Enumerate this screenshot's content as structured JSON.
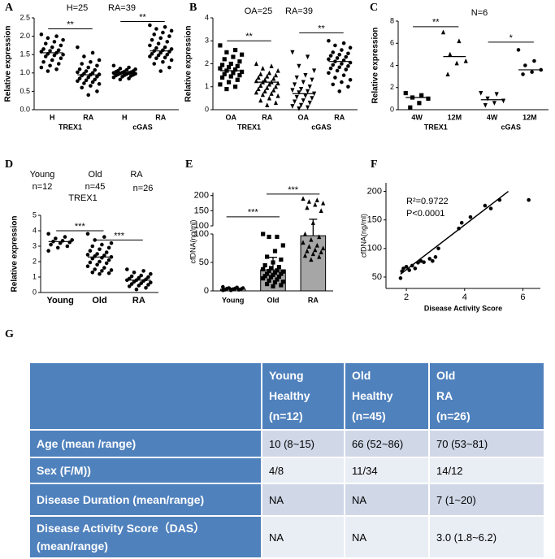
{
  "chart_data": [
    {
      "type": "dot",
      "panel": "A",
      "annotations": [
        "H=25",
        "RA=39"
      ],
      "ylabel": "Relative expression",
      "ylim": [
        0,
        2.5
      ],
      "yticks": [
        {
          "value": 0,
          "label": "0.0"
        },
        0.5,
        {
          "value": 1,
          "label": "1.0"
        },
        1.5,
        {
          "value": 2,
          "label": "2.0"
        },
        2.5
      ],
      "genes": [
        "TREX1",
        "cGAS"
      ],
      "groups": [
        {
          "name": "H",
          "marker": "circle",
          "median": 1.55,
          "values": [
            2.05,
            2.0,
            1.95,
            1.9,
            1.85,
            1.8,
            1.75,
            1.7,
            1.65,
            1.62,
            1.6,
            1.58,
            1.55,
            1.52,
            1.5,
            1.48,
            1.45,
            1.4,
            1.35,
            1.3,
            1.25,
            1.2,
            1.15,
            1.1,
            1.05
          ]
        },
        {
          "name": "RA",
          "marker": "circle",
          "median": 0.95,
          "values": [
            1.7,
            1.55,
            1.45,
            1.35,
            1.3,
            1.25,
            1.2,
            1.15,
            1.1,
            1.08,
            1.05,
            1.02,
            1.0,
            0.98,
            0.96,
            0.95,
            0.93,
            0.9,
            0.88,
            0.85,
            0.82,
            0.8,
            0.78,
            0.75,
            0.72,
            0.7,
            0.65,
            0.6,
            0.5,
            0.4
          ]
        },
        {
          "name": "H",
          "marker": "circle",
          "median": 1.0,
          "values": [
            1.2,
            1.15,
            1.12,
            1.1,
            1.08,
            1.06,
            1.05,
            1.04,
            1.03,
            1.02,
            1.01,
            1.0,
            1.0,
            0.99,
            0.98,
            0.97,
            0.96,
            0.95,
            0.94,
            0.93,
            0.92,
            0.9,
            0.88,
            0.85,
            0.82
          ]
        },
        {
          "name": "RA",
          "marker": "circle",
          "median": 1.6,
          "values": [
            2.3,
            2.25,
            2.2,
            2.15,
            2.1,
            2.05,
            2.0,
            1.95,
            1.9,
            1.85,
            1.8,
            1.75,
            1.7,
            1.68,
            1.65,
            1.62,
            1.6,
            1.58,
            1.55,
            1.52,
            1.5,
            1.48,
            1.45,
            1.42,
            1.4,
            1.35,
            1.3,
            1.25,
            1.15,
            1.05
          ]
        }
      ],
      "significance": [
        {
          "label": "**",
          "y": 2.2
        },
        {
          "label": "**",
          "y": 2.4
        }
      ]
    },
    {
      "type": "dot",
      "panel": "B",
      "annotations": [
        "OA=25",
        "RA=39"
      ],
      "ylabel": "Relative expression",
      "ylim": [
        0,
        4
      ],
      "yticks": [
        0,
        1,
        2,
        3,
        4
      ],
      "genes": [
        "TREX1",
        "cGAS"
      ],
      "groups": [
        {
          "name": "OA",
          "marker": "square",
          "median": 1.7,
          "values": [
            2.8,
            2.6,
            2.5,
            2.4,
            2.3,
            2.2,
            2.1,
            2.0,
            1.95,
            1.9,
            1.85,
            1.8,
            1.75,
            1.7,
            1.65,
            1.6,
            1.55,
            1.5,
            1.45,
            1.4,
            1.3,
            1.2,
            1.1,
            1.0,
            0.9
          ]
        },
        {
          "name": "RA",
          "marker": "triangle",
          "median": 1.2,
          "values": [
            2.0,
            1.9,
            1.8,
            1.7,
            1.6,
            1.55,
            1.5,
            1.45,
            1.4,
            1.35,
            1.3,
            1.25,
            1.2,
            1.2,
            1.15,
            1.1,
            1.05,
            1.0,
            0.95,
            0.9,
            0.85,
            0.8,
            0.75,
            0.7,
            0.65,
            0.6,
            0.5,
            0.4,
            0.3,
            0.2
          ]
        },
        {
          "name": "OA",
          "marker": "down-triangle",
          "median": 0.7,
          "values": [
            2.5,
            2.3,
            1.9,
            1.7,
            1.5,
            1.4,
            1.3,
            1.2,
            1.1,
            1.0,
            0.9,
            0.85,
            0.8,
            0.75,
            0.7,
            0.6,
            0.55,
            0.5,
            0.4,
            0.35,
            0.3,
            0.2,
            0.15,
            0.1,
            0.05
          ]
        },
        {
          "name": "RA",
          "marker": "circle",
          "median": 2.1,
          "values": [
            3.0,
            2.9,
            2.8,
            2.7,
            2.6,
            2.5,
            2.45,
            2.4,
            2.35,
            2.3,
            2.25,
            2.2,
            2.15,
            2.1,
            2.05,
            2.0,
            1.95,
            1.9,
            1.85,
            1.8,
            1.75,
            1.7,
            1.6,
            1.5,
            1.4,
            1.3,
            1.2,
            1.1,
            1.0,
            0.8
          ]
        }
      ],
      "significance": [
        {
          "label": "**",
          "y": 3.0
        },
        {
          "label": "**",
          "y": 3.35
        }
      ]
    },
    {
      "type": "dot",
      "panel": "C",
      "annotations": [
        "N=6"
      ],
      "ylabel": "Relative expression",
      "ylim": [
        0,
        8
      ],
      "yticks": [
        0,
        2,
        4,
        6,
        8
      ],
      "genes": [
        "TREX1",
        "cGAS"
      ],
      "groups": [
        {
          "name": "4W",
          "marker": "square",
          "median": 1.1,
          "values": [
            1.5,
            1.3,
            1.1,
            1.0,
            0.6,
            0.2
          ]
        },
        {
          "name": "12M",
          "marker": "triangle",
          "median": 4.8,
          "values": [
            7.0,
            6.2,
            5.0,
            4.4,
            4.2,
            3.2
          ]
        },
        {
          "name": "4W",
          "marker": "down-triangle",
          "median": 0.9,
          "values": [
            1.5,
            1.4,
            1.0,
            0.8,
            0.6,
            0.4
          ]
        },
        {
          "name": "12M",
          "marker": "circle",
          "median": 3.6,
          "values": [
            5.4,
            4.4,
            4.0,
            3.6,
            3.4,
            3.2
          ]
        }
      ],
      "significance": [
        {
          "label": "**",
          "y": 7.5
        },
        {
          "label": "*",
          "y": 6.1
        }
      ]
    },
    {
      "type": "dot",
      "panel": "D",
      "annotations": [
        "Young",
        "Old",
        "RA",
        "n=12",
        "n=45",
        "n=26",
        "TREX1"
      ],
      "ylabel": "Relative expression",
      "ylim": [
        0,
        5
      ],
      "yticks": [
        0,
        1,
        2,
        3,
        4,
        5
      ],
      "groups": [
        {
          "name": "Young",
          "marker": "circle",
          "median": 3.3,
          "values": [
            3.8,
            3.6,
            3.5,
            3.4,
            3.35,
            3.3,
            3.25,
            3.2,
            3.1,
            3.0,
            2.9,
            2.7
          ]
        },
        {
          "name": "Old",
          "marker": "circle",
          "median": 2.3,
          "values": [
            3.8,
            3.6,
            3.4,
            3.2,
            3.1,
            3.0,
            2.9,
            2.8,
            2.7,
            2.6,
            2.5,
            2.45,
            2.4,
            2.35,
            2.3,
            2.25,
            2.2,
            2.1,
            2.0,
            1.95,
            1.9,
            1.8,
            1.7,
            1.6,
            1.5,
            1.45,
            1.4,
            1.3,
            1.25,
            1.2
          ]
        },
        {
          "name": "RA",
          "marker": "circle",
          "median": 0.8,
          "values": [
            1.5,
            1.4,
            1.3,
            1.2,
            1.1,
            1.05,
            1.0,
            0.95,
            0.9,
            0.85,
            0.8,
            0.8,
            0.75,
            0.7,
            0.65,
            0.6,
            0.55,
            0.5,
            0.45,
            0.4,
            0.3,
            0.2
          ]
        }
      ],
      "significance": [
        {
          "label": "***",
          "y": 4.0
        },
        {
          "label": "***",
          "y": 3.4
        }
      ]
    },
    {
      "type": "bar",
      "panel": "E",
      "ylabel": "cfDNA(ng/ml)",
      "ylim_lower": [
        0,
        100
      ],
      "yticks_lower": [
        0,
        50,
        100
      ],
      "ylim_upper": [
        100,
        210
      ],
      "yticks_upper": [
        100,
        150,
        200
      ],
      "groups": [
        {
          "name": "Young",
          "marker": "circle",
          "color": "#d9d9d9",
          "mean": 3,
          "sd": 1.5,
          "values": [
            7,
            6,
            5,
            5,
            4,
            4,
            3,
            3,
            2,
            2,
            1,
            1
          ]
        },
        {
          "name": "Old",
          "marker": "square",
          "color": "#a6a6a6",
          "mean": 37,
          "sd": 22,
          "values": [
            100,
            95,
            95,
            80,
            70,
            60,
            55,
            50,
            45,
            42,
            40,
            38,
            36,
            35,
            34,
            32,
            30,
            30,
            28,
            26,
            25,
            24,
            22,
            20,
            18,
            16,
            15,
            12,
            10,
            8
          ]
        },
        {
          "name": "RA",
          "marker": "triangle",
          "color": "#a6a6a6",
          "mean": 97,
          "sd": 25,
          "values": [
            190,
            185,
            180,
            175,
            170,
            160,
            150,
            110,
            100,
            95,
            90,
            85,
            80,
            78,
            75,
            72,
            70,
            68,
            65,
            62,
            60,
            55
          ]
        }
      ],
      "significance": [
        {
          "label": "***",
          "y": 130
        },
        {
          "label": "***",
          "y": 205
        }
      ]
    },
    {
      "type": "scatter",
      "panel": "F",
      "xlabel": "Disease Activity Score",
      "ylabel": "cfDNA(ng/ml)",
      "annotations": [
        "R²=0.9722",
        "P<0.0001"
      ],
      "xlim": [
        1.3,
        6.6
      ],
      "xticks": [
        2,
        4,
        6
      ],
      "ylim": [
        30,
        215
      ],
      "yticks": [
        50,
        100,
        150,
        200
      ],
      "x": [
        1.8,
        1.85,
        1.9,
        2.0,
        2.1,
        2.2,
        2.3,
        2.4,
        2.5,
        2.6,
        2.8,
        2.9,
        3.0,
        3.1,
        3.8,
        3.9,
        4.2,
        4.7,
        4.9,
        5.2,
        6.2
      ],
      "y": [
        48,
        60,
        65,
        68,
        62,
        70,
        65,
        75,
        78,
        76,
        82,
        78,
        85,
        100,
        135,
        145,
        155,
        175,
        170,
        185,
        185
      ],
      "fit": {
        "x": [
          1.8,
          5.5
        ],
        "y": [
          55,
          200
        ]
      }
    }
  ],
  "table": {
    "panel": "G",
    "header": [
      [
        "Young",
        "Healthy",
        "(n=12)"
      ],
      [
        "Old",
        "Healthy",
        "(n=45)"
      ],
      [
        "Old",
        "RA",
        "(n=26)"
      ]
    ],
    "rows": [
      [
        "Age (mean /range)",
        "10 (8~15)",
        "66 (52~86)",
        "70 (53~81)"
      ],
      [
        "Sex (F/M))",
        "4/8",
        "11/34",
        "14/12"
      ],
      [
        "Disease Duration (mean/range)",
        "NA",
        "NA",
        "7 (1~20)"
      ],
      [
        [
          "Disease Activity Score（DAS）",
          "(mean/range)"
        ],
        "NA",
        "NA",
        "3.0 (1.8~6.2)"
      ]
    ]
  }
}
